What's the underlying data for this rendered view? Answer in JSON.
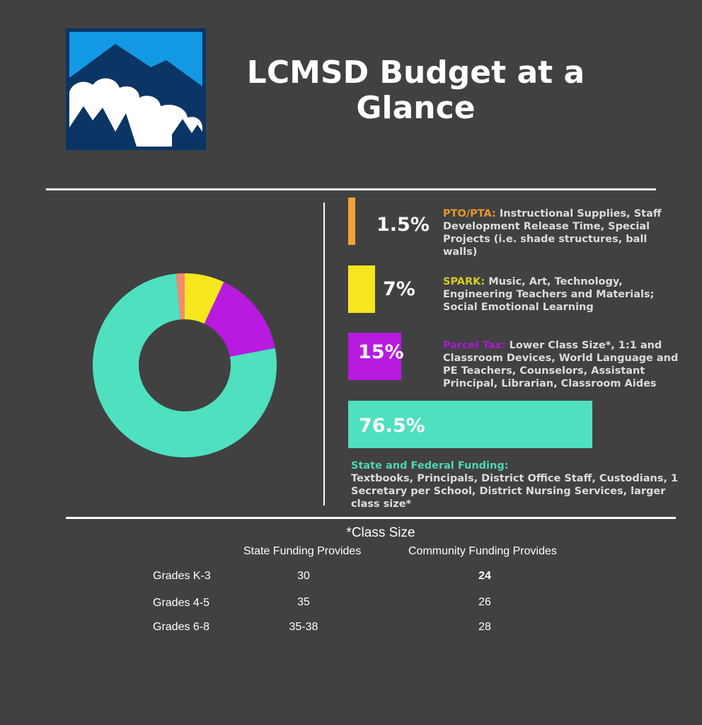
{
  "header": {
    "title_line1": "LCMSD Budget at a",
    "title_line2": "Glance",
    "logo_icon": "mountain-cloud-logo-icon"
  },
  "chart_data": {
    "type": "pie",
    "categories": [
      "PTO/PTA",
      "SPARK",
      "Parcel Tax",
      "State and Federal Funding"
    ],
    "values": [
      1.5,
      7,
      15,
      76.5
    ],
    "value_labels": [
      "1.5%",
      "7%",
      "15%",
      "76.5%"
    ],
    "colors": [
      "#f48a6d",
      "#f5e61e",
      "#b81ae0",
      "#4fe0c0"
    ],
    "bar_colors": [
      "#f2a333",
      "#f5e61e",
      "#b81ae0",
      "#4fe0c0"
    ],
    "label_colors": [
      "#e7992c",
      "#d6cd24",
      "#a51ccf",
      "#4fd6b5"
    ]
  },
  "legend": [
    {
      "label": "PTO/PTA:",
      "text": " Instructional Supplies, Staff Development Release Time, Special Projects (i.e. shade structures, ball walls)"
    },
    {
      "label": "SPARK:",
      "text": " Music, Art, Technology, Engineering Teachers and Materials; Social Emotional Learning"
    },
    {
      "label": "Parcel Tax:",
      "text": " Lower Class Size*, 1:1 and Classroom Devices, World Language and PE Teachers, Counselors, Assistant Principal, Librarian, Classroom Aides"
    },
    {
      "label": "State and Federal Funding:",
      "text": "Textbooks, Principals, District Office Staff, Custodians, 1 Secretary per School, District Nursing Services, larger class size*"
    }
  ],
  "class_size": {
    "title": "*Class Size",
    "col_state": "State Funding Provides",
    "col_community": "Community Funding Provides",
    "rows": [
      {
        "grade": "Grades K-3",
        "state": "30",
        "community": "24"
      },
      {
        "grade": "Grades 4-5",
        "state": "35",
        "community": "26"
      },
      {
        "grade": "Grades 6-8",
        "state": "35-38",
        "community": "28"
      }
    ]
  }
}
